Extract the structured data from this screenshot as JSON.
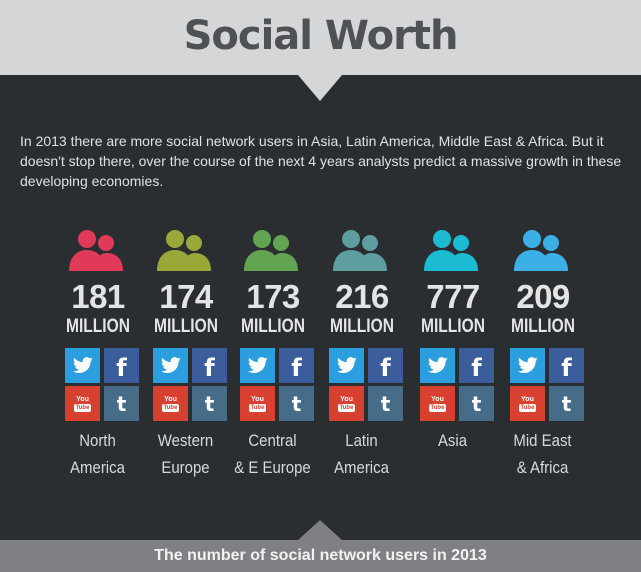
{
  "header": {
    "title": "Social Worth"
  },
  "intro": "In 2013 there are more social network users in Asia, Latin America, Middle East & Africa. But it doesn't stop there, over the course of the next 4 years analysts predict a massive growth in these developing economies.",
  "footer": {
    "caption": "The number of social network users in 2013"
  },
  "networks": {
    "twitter_icon": "twitter-icon",
    "facebook_icon": "facebook-icon",
    "youtube_icon": "youtube-icon",
    "tumblr_icon": "tumblr-icon",
    "youtube_you": "You",
    "youtube_tube": "Tube",
    "facebook_glyph": "f",
    "tumblr_glyph": "t"
  },
  "colors": {
    "north_america": "#e03a58",
    "western_europe": "#9aa83a",
    "central_europe": "#63a453",
    "latin_america": "#5f9ea0",
    "asia": "#1dbad3",
    "mid_east_africa": "#3cb0e6"
  },
  "chart_data": {
    "type": "table",
    "title": "Social Worth",
    "caption": "The number of social network users in 2013",
    "unit": "MILLION",
    "categories": [
      "North America",
      "Western Europe",
      "Central & E Europe",
      "Latin America",
      "Asia",
      "Mid East & Africa"
    ],
    "values": [
      181,
      174,
      173,
      216,
      777,
      209
    ],
    "regions": [
      {
        "name_line1": "North",
        "name_line2": "America",
        "value": "181",
        "unit": "MILLION",
        "color": "#e03a58"
      },
      {
        "name_line1": "Western",
        "name_line2": "Europe",
        "value": "174",
        "unit": "MILLION",
        "color": "#9aa83a"
      },
      {
        "name_line1": "Central",
        "name_line2": "& E Europe",
        "value": "173",
        "unit": "MILLION",
        "color": "#63a453"
      },
      {
        "name_line1": "Latin",
        "name_line2": "America",
        "value": "216",
        "unit": "MILLION",
        "color": "#5f9ea0"
      },
      {
        "name_line1": "Asia",
        "name_line2": "",
        "value": "777",
        "unit": "MILLION",
        "color": "#1dbad3"
      },
      {
        "name_line1": "Mid East",
        "name_line2": "& Africa",
        "value": "209",
        "unit": "MILLION",
        "color": "#3cb0e6"
      }
    ]
  }
}
